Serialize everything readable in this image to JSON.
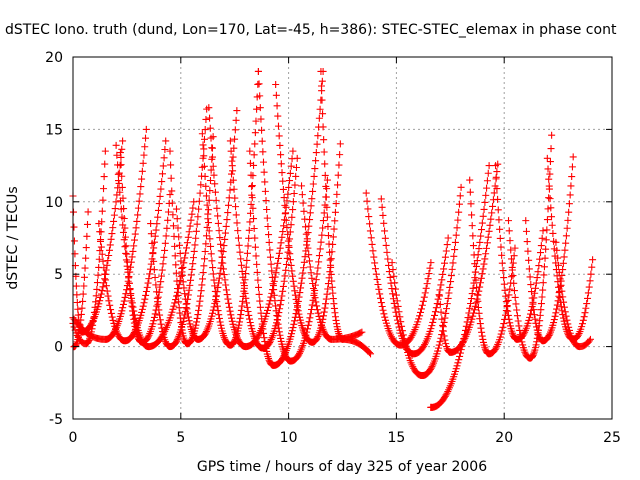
{
  "chart_data": {
    "type": "scatter",
    "title": "dSTEC Iono. truth (dund, Lon=170, Lat=-45, h=386): STEC-STEC_elemax in phase cont",
    "xlabel": "GPS time / hours of day 325 of year 2006",
    "ylabel": "dSTEC / TECUs",
    "xlim": [
      0,
      25
    ],
    "ylim": [
      -5,
      20
    ],
    "xticks": [
      "0",
      "5",
      "10",
      "15",
      "20",
      "25"
    ],
    "yticks": [
      "-5",
      "0",
      "5",
      "10",
      "15",
      "20"
    ],
    "grid": true,
    "marker": "+",
    "colors": {
      "series": "#ff0000",
      "grid": "#a0a0a0",
      "axis": "#000000"
    },
    "passes": [
      {
        "start": [
          0.0,
          10.4
        ],
        "min": [
          0.4,
          1.0
        ],
        "end": [
          2.3,
          14.2
        ]
      },
      {
        "start": [
          0.0,
          1.6
        ],
        "min": [
          0.6,
          0.2
        ],
        "end": [
          1.5,
          13.5
        ]
      },
      {
        "start": [
          0.05,
          0.0
        ],
        "min": [
          0.05,
          0.0
        ],
        "end": [
          0.7,
          9.3
        ]
      },
      {
        "start": [
          0.0,
          2.0
        ],
        "min": [
          1.5,
          0.5
        ],
        "end": [
          3.4,
          15.0
        ]
      },
      {
        "start": [
          1.2,
          8.5
        ],
        "min": [
          2.4,
          0.4
        ],
        "end": [
          4.3,
          14.2
        ]
      },
      {
        "start": [
          2.0,
          13.9
        ],
        "min": [
          3.5,
          0.0
        ],
        "end": [
          5.6,
          10.0
        ]
      },
      {
        "start": [
          2.2,
          13.4
        ],
        "min": [
          3.2,
          0.3
        ],
        "end": [
          4.5,
          10.5
        ]
      },
      {
        "start": [
          3.6,
          8.5
        ],
        "min": [
          4.5,
          0.0
        ],
        "end": [
          6.2,
          16.4
        ]
      },
      {
        "start": [
          4.5,
          13.5
        ],
        "min": [
          5.3,
          0.2
        ],
        "end": [
          6.5,
          14.5
        ]
      },
      {
        "start": [
          4.8,
          9.5
        ],
        "min": [
          5.8,
          0.5
        ],
        "end": [
          7.6,
          16.3
        ]
      },
      {
        "start": [
          6.0,
          14.7
        ],
        "min": [
          7.3,
          0.1
        ],
        "end": [
          8.6,
          19.0
        ]
      },
      {
        "start": [
          6.3,
          16.5
        ],
        "min": [
          8.0,
          0.0
        ],
        "end": [
          10.2,
          13.5
        ]
      },
      {
        "start": [
          7.3,
          14.2
        ],
        "min": [
          8.8,
          -0.1
        ],
        "end": [
          10.4,
          13.0
        ]
      },
      {
        "start": [
          8.2,
          13.5
        ],
        "min": [
          9.3,
          -1.3
        ],
        "end": [
          11.6,
          19.0
        ]
      },
      {
        "start": [
          8.6,
          19.0
        ],
        "min": [
          10.1,
          -1.0
        ],
        "end": [
          11.8,
          11.5
        ]
      },
      {
        "start": [
          9.4,
          18.1
        ],
        "min": [
          11.1,
          0.3
        ],
        "end": [
          12.4,
          14.0
        ]
      },
      {
        "start": [
          10.6,
          11.1
        ],
        "min": [
          12.0,
          0.5
        ],
        "end": [
          13.4,
          1.0
        ]
      },
      {
        "start": [
          11.5,
          19.0
        ],
        "min": [
          12.5,
          0.5
        ],
        "end": [
          13.8,
          -0.5
        ]
      },
      {
        "start": [
          13.6,
          10.6
        ],
        "min": [
          15.2,
          0.1
        ],
        "end": [
          16.6,
          5.8
        ]
      },
      {
        "start": [
          14.3,
          10.2
        ],
        "min": [
          15.8,
          -0.5
        ],
        "end": [
          17.4,
          7.5
        ]
      },
      {
        "start": [
          14.8,
          5.8
        ],
        "min": [
          16.2,
          -2.0
        ],
        "end": [
          18.0,
          11.0
        ]
      },
      {
        "start": [
          16.6,
          -4.2
        ],
        "min": [
          16.6,
          -4.2
        ],
        "end": [
          19.3,
          12.5
        ]
      },
      {
        "start": [
          17.0,
          3.5
        ],
        "min": [
          17.5,
          -0.4
        ],
        "end": [
          19.7,
          12.6
        ]
      },
      {
        "start": [
          18.4,
          11.5
        ],
        "min": [
          19.3,
          -0.5
        ],
        "end": [
          20.5,
          6.8
        ]
      },
      {
        "start": [
          19.6,
          12.5
        ],
        "min": [
          20.6,
          0.5
        ],
        "end": [
          21.8,
          8.0
        ]
      },
      {
        "start": [
          20.2,
          8.7
        ],
        "min": [
          21.2,
          -0.8
        ],
        "end": [
          22.2,
          14.6
        ]
      },
      {
        "start": [
          21.0,
          8.7
        ],
        "min": [
          21.8,
          0.4
        ],
        "end": [
          23.2,
          13.1
        ]
      },
      {
        "start": [
          22.0,
          13.0
        ],
        "min": [
          23.2,
          0.5
        ],
        "end": [
          24.1,
          6.0
        ]
      },
      {
        "start": [
          22.4,
          7.2
        ],
        "min": [
          23.5,
          0.0
        ],
        "end": [
          24.0,
          0.5
        ]
      }
    ]
  }
}
